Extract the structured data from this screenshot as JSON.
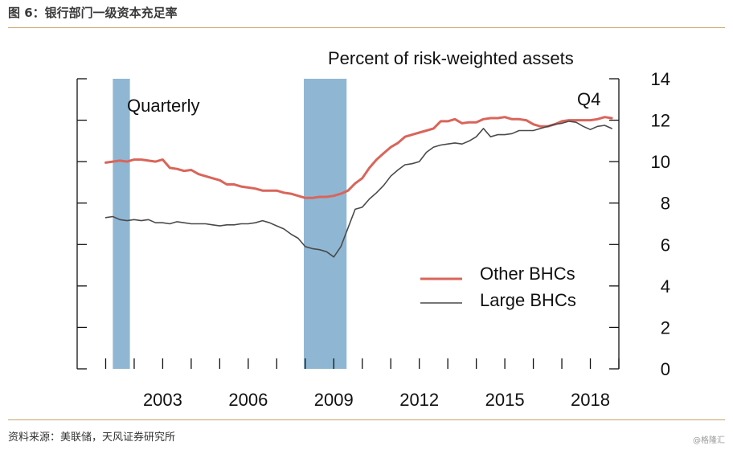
{
  "figure": {
    "title": "图 6：银行部门一级资本充足率",
    "source": "资料来源：美联储，天风证券研究所",
    "watermark": "@格隆汇"
  },
  "chart_data": {
    "type": "line",
    "title": "Percent of risk-weighted assets",
    "frequency_note": "Quarterly",
    "end_note": "Q4",
    "xlim": [
      2000.0,
      2019.0
    ],
    "ylim": [
      0,
      14
    ],
    "x_ticks": [
      2003,
      2006,
      2009,
      2012,
      2015,
      2018
    ],
    "y_ticks": [
      0,
      2,
      4,
      6,
      8,
      10,
      12,
      14
    ],
    "y_axis_side": "right",
    "grid": false,
    "legend_placement": "lower-right",
    "shaded_periods": [
      {
        "start": 2001.25,
        "end": 2001.85
      },
      {
        "start": 2007.95,
        "end": 2009.45
      }
    ],
    "colors": {
      "other_bhcs": "#d9655a",
      "large_bhcs": "#4a4a4a",
      "recession": "#8fb7d3"
    },
    "series": [
      {
        "name": "Other BHCs",
        "color": "#d9655a",
        "points": [
          [
            2001.0,
            9.95
          ],
          [
            2001.25,
            10.0
          ],
          [
            2001.5,
            10.05
          ],
          [
            2001.75,
            10.0
          ],
          [
            2002.0,
            10.1
          ],
          [
            2002.25,
            10.1
          ],
          [
            2002.5,
            10.05
          ],
          [
            2002.75,
            10.0
          ],
          [
            2003.0,
            10.1
          ],
          [
            2003.25,
            9.7
          ],
          [
            2003.5,
            9.65
          ],
          [
            2003.75,
            9.55
          ],
          [
            2004.0,
            9.6
          ],
          [
            2004.25,
            9.4
          ],
          [
            2004.5,
            9.3
          ],
          [
            2004.75,
            9.2
          ],
          [
            2005.0,
            9.1
          ],
          [
            2005.25,
            8.9
          ],
          [
            2005.5,
            8.9
          ],
          [
            2005.75,
            8.8
          ],
          [
            2006.0,
            8.75
          ],
          [
            2006.25,
            8.7
          ],
          [
            2006.5,
            8.6
          ],
          [
            2006.75,
            8.6
          ],
          [
            2007.0,
            8.6
          ],
          [
            2007.25,
            8.5
          ],
          [
            2007.5,
            8.45
          ],
          [
            2007.75,
            8.35
          ],
          [
            2008.0,
            8.25
          ],
          [
            2008.25,
            8.25
          ],
          [
            2008.5,
            8.3
          ],
          [
            2008.75,
            8.3
          ],
          [
            2009.0,
            8.35
          ],
          [
            2009.25,
            8.45
          ],
          [
            2009.5,
            8.6
          ],
          [
            2009.75,
            8.95
          ],
          [
            2010.0,
            9.2
          ],
          [
            2010.25,
            9.7
          ],
          [
            2010.5,
            10.1
          ],
          [
            2010.75,
            10.4
          ],
          [
            2011.0,
            10.7
          ],
          [
            2011.25,
            10.9
          ],
          [
            2011.5,
            11.2
          ],
          [
            2011.75,
            11.3
          ],
          [
            2012.0,
            11.4
          ],
          [
            2012.25,
            11.5
          ],
          [
            2012.5,
            11.6
          ],
          [
            2012.75,
            11.95
          ],
          [
            2013.0,
            11.95
          ],
          [
            2013.25,
            12.05
          ],
          [
            2013.5,
            11.85
          ],
          [
            2013.75,
            11.9
          ],
          [
            2014.0,
            11.9
          ],
          [
            2014.25,
            12.05
          ],
          [
            2014.5,
            12.1
          ],
          [
            2014.75,
            12.1
          ],
          [
            2015.0,
            12.15
          ],
          [
            2015.25,
            12.05
          ],
          [
            2015.5,
            12.05
          ],
          [
            2015.75,
            12.0
          ],
          [
            2016.0,
            11.8
          ],
          [
            2016.25,
            11.7
          ],
          [
            2016.5,
            11.7
          ],
          [
            2016.75,
            11.8
          ],
          [
            2017.0,
            11.95
          ],
          [
            2017.25,
            12.0
          ],
          [
            2017.5,
            12.0
          ],
          [
            2017.75,
            12.0
          ],
          [
            2018.0,
            12.0
          ],
          [
            2018.25,
            12.05
          ],
          [
            2018.5,
            12.15
          ],
          [
            2018.75,
            12.1
          ]
        ]
      },
      {
        "name": "Large BHCs",
        "color": "#4a4a4a",
        "points": [
          [
            2001.0,
            7.3
          ],
          [
            2001.25,
            7.35
          ],
          [
            2001.5,
            7.2
          ],
          [
            2001.75,
            7.15
          ],
          [
            2002.0,
            7.2
          ],
          [
            2002.25,
            7.15
          ],
          [
            2002.5,
            7.2
          ],
          [
            2002.75,
            7.05
          ],
          [
            2003.0,
            7.05
          ],
          [
            2003.25,
            7.0
          ],
          [
            2003.5,
            7.1
          ],
          [
            2003.75,
            7.05
          ],
          [
            2004.0,
            7.0
          ],
          [
            2004.25,
            7.0
          ],
          [
            2004.5,
            7.0
          ],
          [
            2004.75,
            6.95
          ],
          [
            2005.0,
            6.9
          ],
          [
            2005.25,
            6.95
          ],
          [
            2005.5,
            6.95
          ],
          [
            2005.75,
            7.0
          ],
          [
            2006.0,
            7.0
          ],
          [
            2006.25,
            7.05
          ],
          [
            2006.5,
            7.15
          ],
          [
            2006.75,
            7.05
          ],
          [
            2007.0,
            6.9
          ],
          [
            2007.25,
            6.75
          ],
          [
            2007.5,
            6.5
          ],
          [
            2007.75,
            6.3
          ],
          [
            2008.0,
            5.9
          ],
          [
            2008.25,
            5.8
          ],
          [
            2008.5,
            5.75
          ],
          [
            2008.75,
            5.65
          ],
          [
            2009.0,
            5.4
          ],
          [
            2009.25,
            5.9
          ],
          [
            2009.5,
            6.8
          ],
          [
            2009.75,
            7.7
          ],
          [
            2010.0,
            7.8
          ],
          [
            2010.25,
            8.2
          ],
          [
            2010.5,
            8.5
          ],
          [
            2010.75,
            8.85
          ],
          [
            2011.0,
            9.3
          ],
          [
            2011.25,
            9.6
          ],
          [
            2011.5,
            9.85
          ],
          [
            2011.75,
            9.9
          ],
          [
            2012.0,
            10.0
          ],
          [
            2012.25,
            10.45
          ],
          [
            2012.5,
            10.7
          ],
          [
            2012.75,
            10.8
          ],
          [
            2013.0,
            10.85
          ],
          [
            2013.25,
            10.9
          ],
          [
            2013.5,
            10.85
          ],
          [
            2013.75,
            11.0
          ],
          [
            2014.0,
            11.2
          ],
          [
            2014.25,
            11.6
          ],
          [
            2014.5,
            11.2
          ],
          [
            2014.75,
            11.3
          ],
          [
            2015.0,
            11.3
          ],
          [
            2015.25,
            11.35
          ],
          [
            2015.5,
            11.5
          ],
          [
            2015.75,
            11.5
          ],
          [
            2016.0,
            11.5
          ],
          [
            2016.25,
            11.6
          ],
          [
            2016.5,
            11.7
          ],
          [
            2016.75,
            11.8
          ],
          [
            2017.0,
            11.85
          ],
          [
            2017.25,
            11.95
          ],
          [
            2017.5,
            11.9
          ],
          [
            2017.75,
            11.7
          ],
          [
            2018.0,
            11.55
          ],
          [
            2018.25,
            11.7
          ],
          [
            2018.5,
            11.75
          ],
          [
            2018.75,
            11.6
          ]
        ]
      }
    ]
  }
}
